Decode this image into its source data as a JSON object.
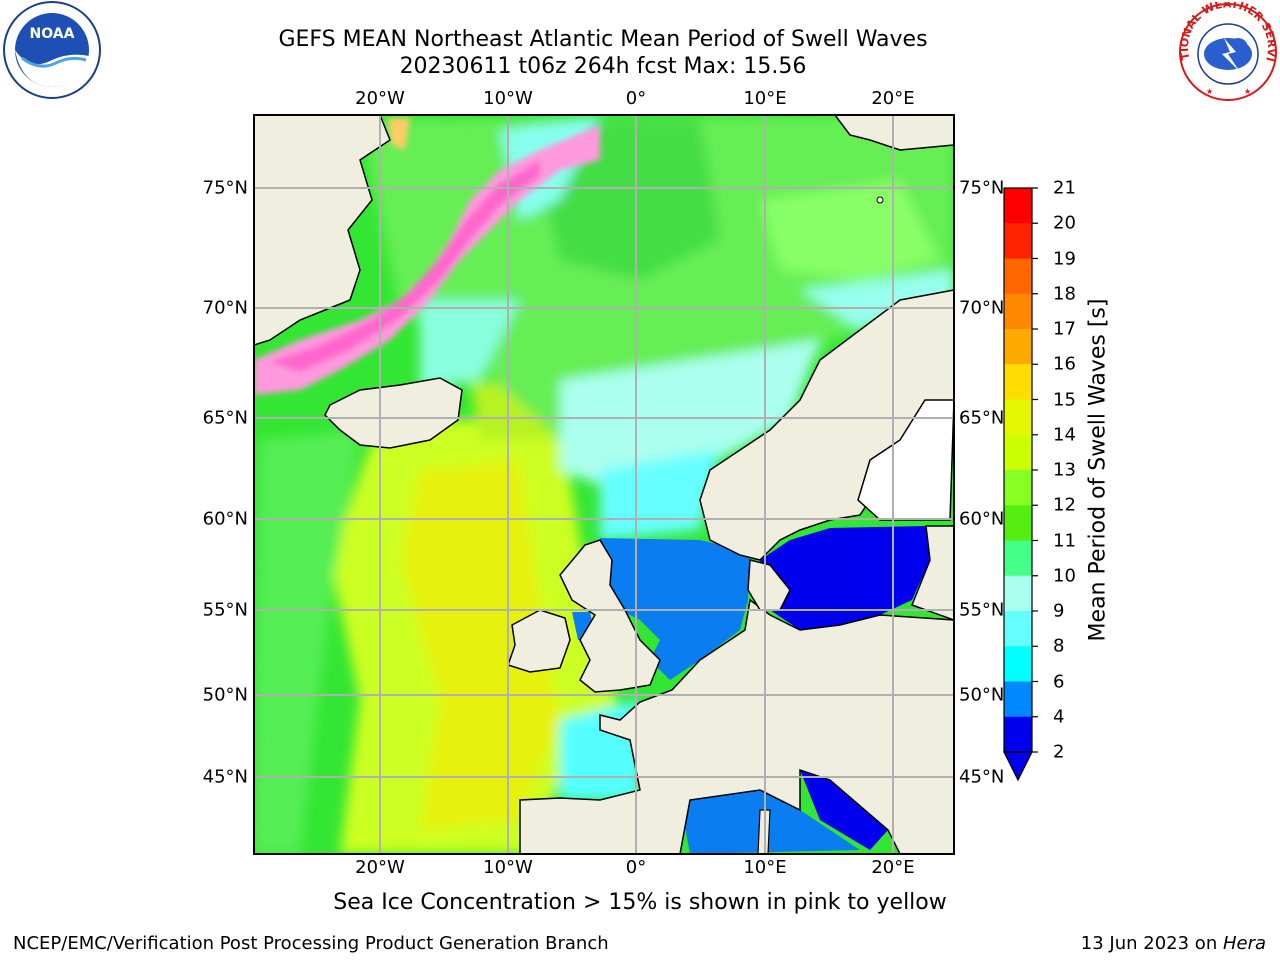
{
  "title": {
    "line1": "GEFS MEAN Northeast Atlantic Mean Period of Swell Waves",
    "line2": "20230611 t06z 264h fcst   Max: 15.56"
  },
  "axes": {
    "lon_labels": [
      "20°W",
      "10°W",
      "0°",
      "10°E",
      "20°E"
    ],
    "lat_labels": [
      "75°N",
      "70°N",
      "65°N",
      "60°N",
      "55°N",
      "50°N",
      "45°N"
    ]
  },
  "colorbar": {
    "label": "Mean Period of Swell Waves [s]",
    "ticks": [
      "21",
      "20",
      "19",
      "18",
      "17",
      "16",
      "15",
      "14",
      "13",
      "12",
      "11",
      "10",
      "9",
      "8",
      "6",
      "4",
      "2"
    ],
    "colors": [
      "#ff0000",
      "#ff2200",
      "#ff4400",
      "#ff6600",
      "#ff8800",
      "#ffaa00",
      "#ffdd00",
      "#ffff00",
      "#e6f500",
      "#ccff00",
      "#88ff22",
      "#55ee11",
      "#22dd00",
      "#44ff88",
      "#aaffee",
      "#66ffff",
      "#00ffff",
      "#00ccff",
      "#0088ff",
      "#0000ee"
    ]
  },
  "map": {
    "land_color": "#efeedf",
    "ice_color": "#ff66cc"
  },
  "logos": {
    "noaa_text": "NOAA",
    "nws_text": "NATIONAL WEATHER SERVICE"
  },
  "footer": {
    "note": "Sea Ice Concentration > 15% is shown in pink to yellow",
    "org": "NCEP/EMC/Verification Post Processing Product Generation Branch",
    "date": "13 Jun 2023 on ",
    "machine": "Hera"
  }
}
